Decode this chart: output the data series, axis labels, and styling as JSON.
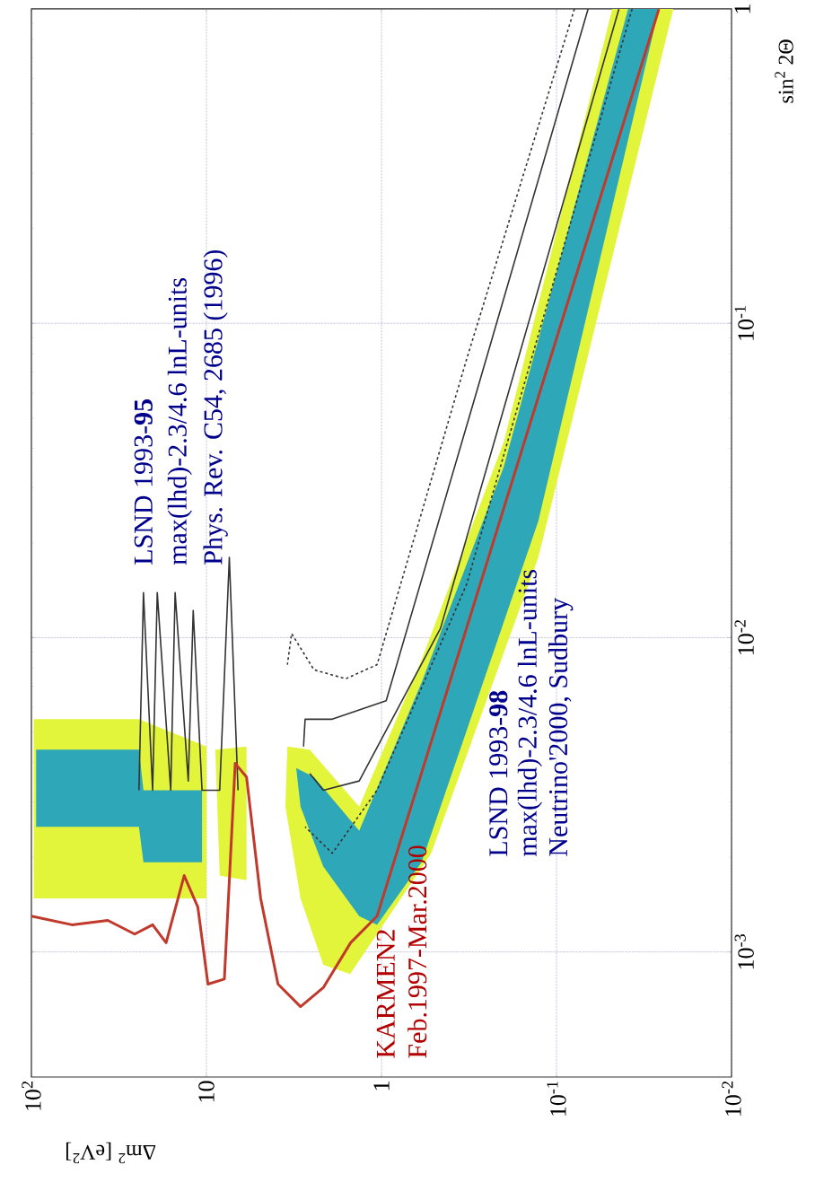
{
  "chart_data": {
    "type": "line",
    "xlabel": "Δm$^{2}$ [eV$^{2}$]",
    "ylabel": "sin$^{2}$ 2Θ",
    "log": "xy",
    "grid": true,
    "xlim": [
      100,
      0.01
    ],
    "ylim": [
      0.0004,
      1
    ],
    "xticks": [
      {
        "value": 100,
        "label": "10$^{2}$"
      },
      {
        "value": 10,
        "label": "10"
      },
      {
        "value": 1,
        "label": "1"
      },
      {
        "value": 0.1,
        "label": "10$^{-1}$"
      },
      {
        "value": 0.01,
        "label": "10$^{-2}$"
      }
    ],
    "yticks": [
      {
        "value": 0.001,
        "label": "10$^{-3}$"
      },
      {
        "value": 0.01,
        "label": "10$^{-2}$"
      },
      {
        "value": 0.1,
        "label": "10$^{-1}$"
      },
      {
        "value": 1,
        "label": "1"
      }
    ],
    "series": [
      {
        "type": "area",
        "color": "#e2f53a",
        "x": [
          97,
          24.3,
          10,
          10,
          97
        ],
        "values": [
          0.0055,
          0.0055,
          0.0045,
          0.00148,
          0.00148
        ]
      },
      {
        "type": "area",
        "color": "#e2f53a",
        "x": [
          8.9,
          5.9,
          5.9,
          8.4
        ],
        "values": [
          0.0044,
          0.0045,
          0.00169,
          0.00175
        ]
      },
      {
        "type": "area",
        "color": "#e2f53a",
        "x": [
          3.45,
          2.57,
          1.34,
          0.59,
          0.2,
          0.048,
          0.0215,
          0.127,
          0.52,
          1.51,
          2.15,
          2.9,
          3.54
        ],
        "values": [
          0.0045,
          0.0044,
          0.0029,
          0.0085,
          0.042,
          1,
          1,
          0.018,
          0.00206,
          0.00085,
          0.00091,
          0.00148,
          0.0029
        ]
      },
      {
        "type": "area",
        "color": "#2ea8b8",
        "x": [
          94,
          24.3,
          22.9,
          10.6,
          10.6,
          22.9,
          24.3,
          94
        ],
        "values": [
          0.0044,
          0.0044,
          0.00327,
          0.00327,
          0.00193,
          0.00193,
          0.0025,
          0.0025
        ]
      },
      {
        "type": "area",
        "color": "#2ea8b8",
        "x": [
          3.07,
          2.43,
          1.34,
          0.59,
          0.2,
          0.039,
          0.026,
          0.127,
          0.59,
          1.06,
          1.34,
          2.15,
          2.9
        ],
        "values": [
          0.00385,
          0.0036,
          0.00243,
          0.0072,
          0.035,
          1,
          1,
          0.0235,
          0.00193,
          0.00122,
          0.0013,
          0.00187,
          0.0029
        ]
      },
      {
        "color": "#333333",
        "line_style": "dashed",
        "x": [
          0.079,
          0.326,
          1.06,
          1.6,
          2.43,
          3.26,
          3.45
        ],
        "values": [
          1,
          0.077,
          0.0082,
          0.0074,
          0.0079,
          0.0103,
          0.0082
        ]
      },
      {
        "color": "#333333",
        "line_style": "solid",
        "x": [
          0.066,
          0.29,
          0.94,
          1.91,
          2.73,
          2.79
        ],
        "values": [
          1,
          0.059,
          0.0063,
          0.0055,
          0.0055,
          0.0045
        ]
      },
      {
        "color": "#333333",
        "line_style": "dashed",
        "x": [
          0.037,
          0.326,
          1.06,
          1.91,
          2.73
        ],
        "values": [
          1,
          0.0148,
          0.00327,
          0.00206,
          0.0025
        ]
      },
      {
        "color": "#333333",
        "line_style": "solid",
        "x": [
          0.044,
          0.46,
          1.34,
          2.15,
          2.57
        ],
        "values": [
          1,
          0.0107,
          0.0035,
          0.00327,
          0.0037
        ]
      },
      {
        "color": "#333333",
        "line_style": "solid",
        "x": [
          24.3,
          22.9,
          20.3,
          19.1,
          16,
          15.1,
          12.7,
          11.9,
          10.6,
          8.4,
          7.4,
          6.6
        ],
        "values": [
          0.00327,
          0.0139,
          0.00327,
          0.0139,
          0.00327,
          0.0139,
          0.0035,
          0.0122,
          0.00327,
          0.00327,
          0.018,
          0.00327
        ]
      },
      {
        "color": "#c0392b",
        "line_style": "solid",
        "x": [
          100,
          58.7,
          36.6,
          25.7,
          20.3,
          17,
          13.4,
          11.2,
          9.8,
          7.9,
          6.85,
          5.9,
          4.9,
          3.9,
          2.9,
          2.15,
          1.5,
          1.06,
          0.026
        ],
        "values": [
          0.0013,
          0.00122,
          0.00126,
          0.00114,
          0.00122,
          0.00107,
          0.00175,
          0.00139,
          0.00079,
          0.00082,
          0.00398,
          0.0036,
          0.00148,
          0.00079,
          0.00067,
          0.00077,
          0.00107,
          0.0013,
          1
        ]
      }
    ],
    "annotations": [
      "KARMEN2",
      "Feb.1997-Mar.2000",
      "LSND 1993-**98**",
      "max(lhd)-2.3/4.6 lnL-units",
      "Neutrino'2000, Sudbury",
      "LSND 1993-**95**",
      "max(lhd)-2.3/4.6 lnL-units",
      "Phys. Rev. C54, 2685 (1996)"
    ]
  }
}
